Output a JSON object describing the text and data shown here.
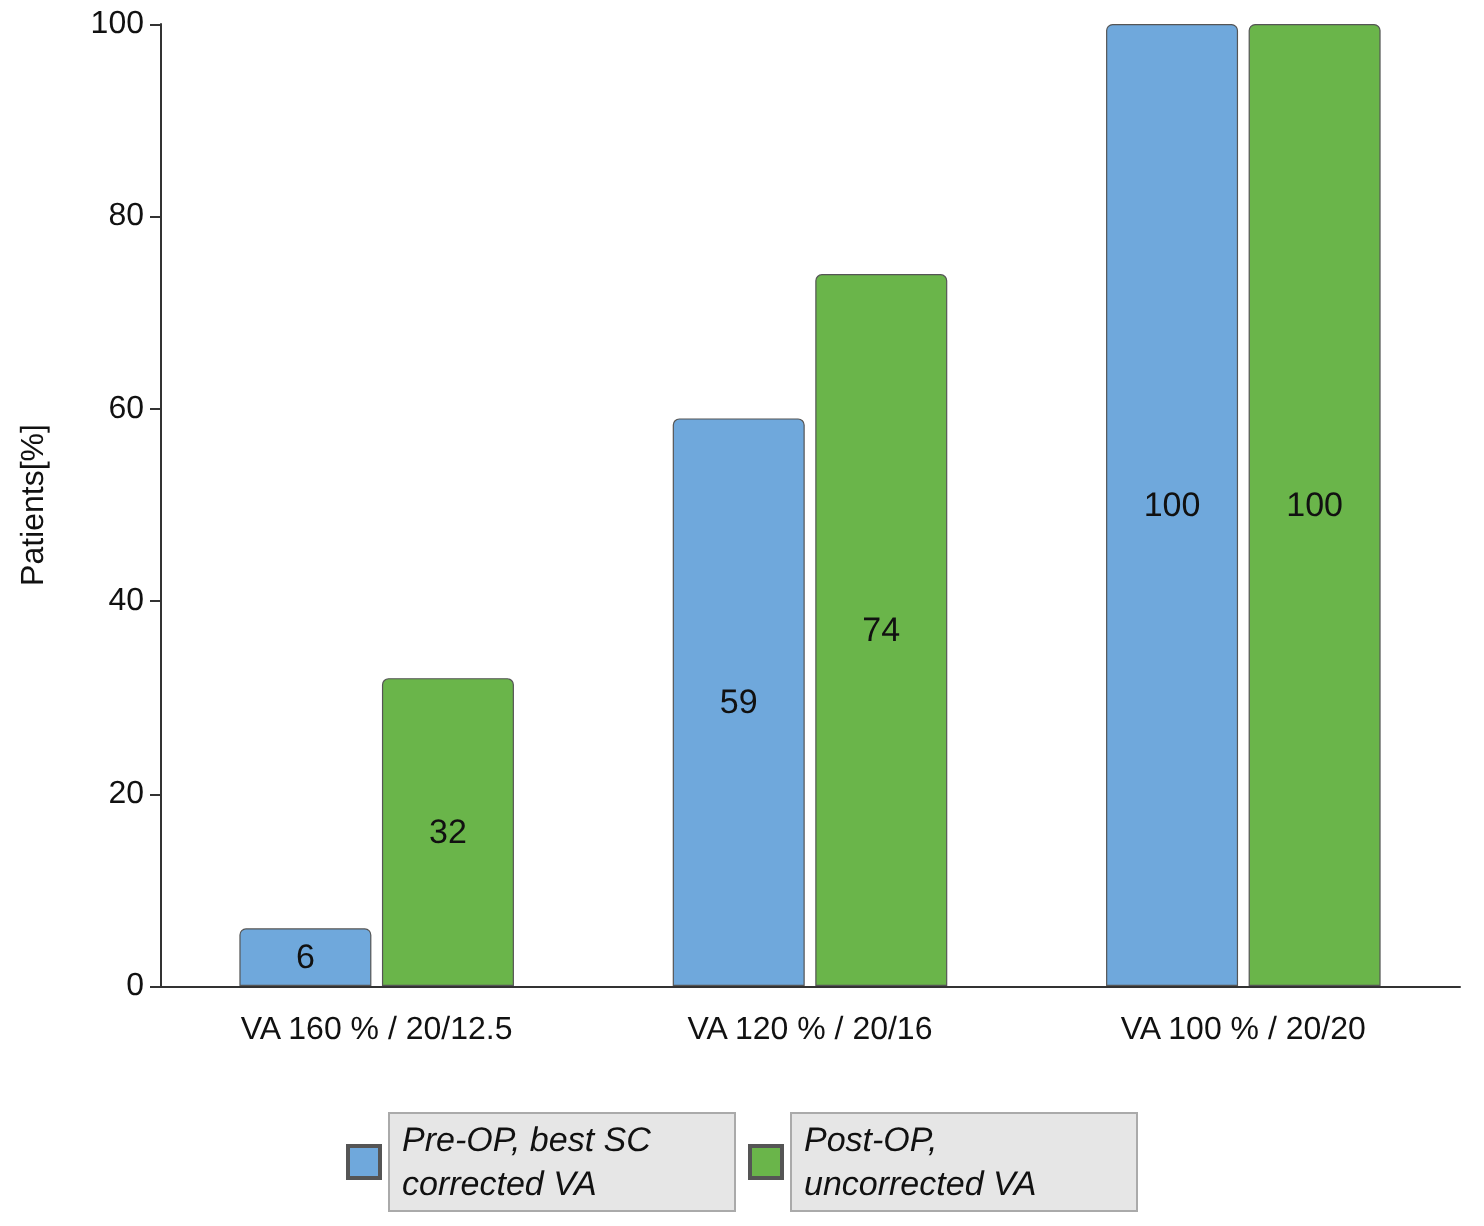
{
  "chart_data": {
    "type": "bar",
    "categories": [
      "VA 160 % / 20/12.5",
      "VA 120 % / 20/16",
      "VA 100 % / 20/20"
    ],
    "series": [
      {
        "name": "Pre-OP, best SC corrected VA",
        "color": "#6fa8dc",
        "values": [
          6,
          59,
          100
        ]
      },
      {
        "name": "Post-OP, uncorrected VA",
        "color": "#6ab54a",
        "values": [
          32,
          74,
          100
        ]
      }
    ],
    "ylabel": "Patients[%]",
    "ylim": [
      0,
      100
    ],
    "yticks": [
      0,
      20,
      40,
      60,
      80,
      100
    ],
    "data_labels": true,
    "grid": false,
    "legend": "bottom"
  }
}
